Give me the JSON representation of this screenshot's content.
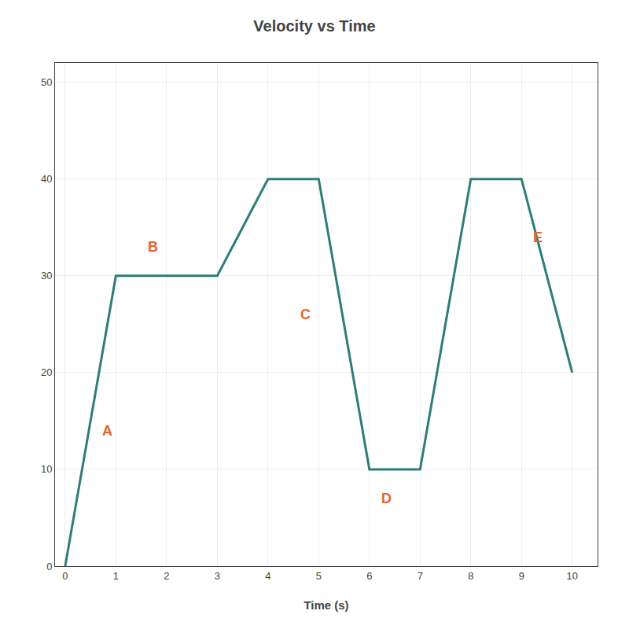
{
  "chart_data": {
    "type": "line",
    "title": "Velocity vs Time",
    "xlabel": "Time (s)",
    "x": [
      0,
      1,
      3,
      4,
      5,
      6,
      7,
      8,
      9,
      10
    ],
    "series": [
      {
        "values": [
          0,
          30,
          30,
          40,
          40,
          10,
          10,
          40,
          40,
          20
        ],
        "color": "#2e7d78"
      }
    ],
    "xlim": [
      -0.2,
      10.5
    ],
    "ylim": [
      0,
      52
    ],
    "xticks": [
      0,
      1,
      2,
      3,
      4,
      5,
      6,
      7,
      8,
      9,
      10
    ],
    "yticks": [
      0,
      10,
      20,
      30,
      40,
      50
    ],
    "grid": true,
    "annotations": [
      {
        "text": "A",
        "x": 0.7,
        "y": 13,
        "color": "#e8622a"
      },
      {
        "text": "B",
        "x": 1.6,
        "y": 32,
        "color": "#e8622a"
      },
      {
        "text": "C",
        "x": 4.6,
        "y": 25,
        "color": "#e8622a"
      },
      {
        "text": "D",
        "x": 6.2,
        "y": 6,
        "color": "#e8622a"
      },
      {
        "text": "E",
        "x": 9.2,
        "y": 33,
        "color": "#e8622a"
      }
    ]
  }
}
